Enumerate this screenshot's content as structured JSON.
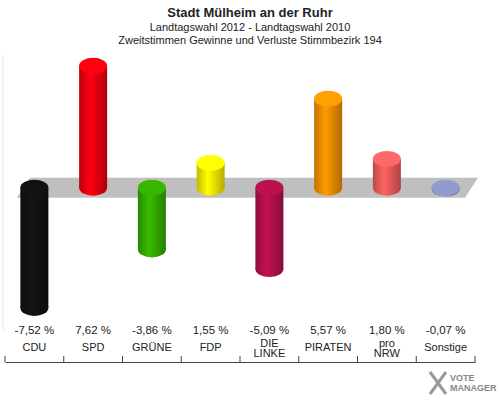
{
  "chart_data": {
    "type": "bar",
    "title": "Stadt Mülheim an der Ruhr",
    "subtitle": [
      "Landtagswahl 2012 - Landtagswahl 2010",
      "Zweitstimmen Gewinne und Verluste Stimmbezirk 194"
    ],
    "categories": [
      "CDU",
      "SPD",
      "GRÜNE",
      "FDP",
      "DIE\nLINKE",
      "PIRATEN",
      "pro\nNRW",
      "Sonstige"
    ],
    "values": [
      -7.52,
      7.62,
      -3.86,
      1.55,
      -5.09,
      5.57,
      1.8,
      -0.07
    ],
    "value_labels": [
      "-7,52 %",
      "7,62 %",
      "-3,86 %",
      "1,55 %",
      "-5,09 %",
      "5,57 %",
      "1,80 %",
      "-0,07 %"
    ],
    "colors": [
      "#111111",
      "#e8000f",
      "#33aa00",
      "#f5e400",
      "#b0104a",
      "#f08c00",
      "#e85a5a",
      "#8890c0"
    ],
    "ylim": [
      -8.9,
      8.3
    ],
    "yticks": [
      0
    ],
    "tick_labels": false,
    "data_labels": true,
    "annotation": "VOTE\nMANAGER"
  }
}
